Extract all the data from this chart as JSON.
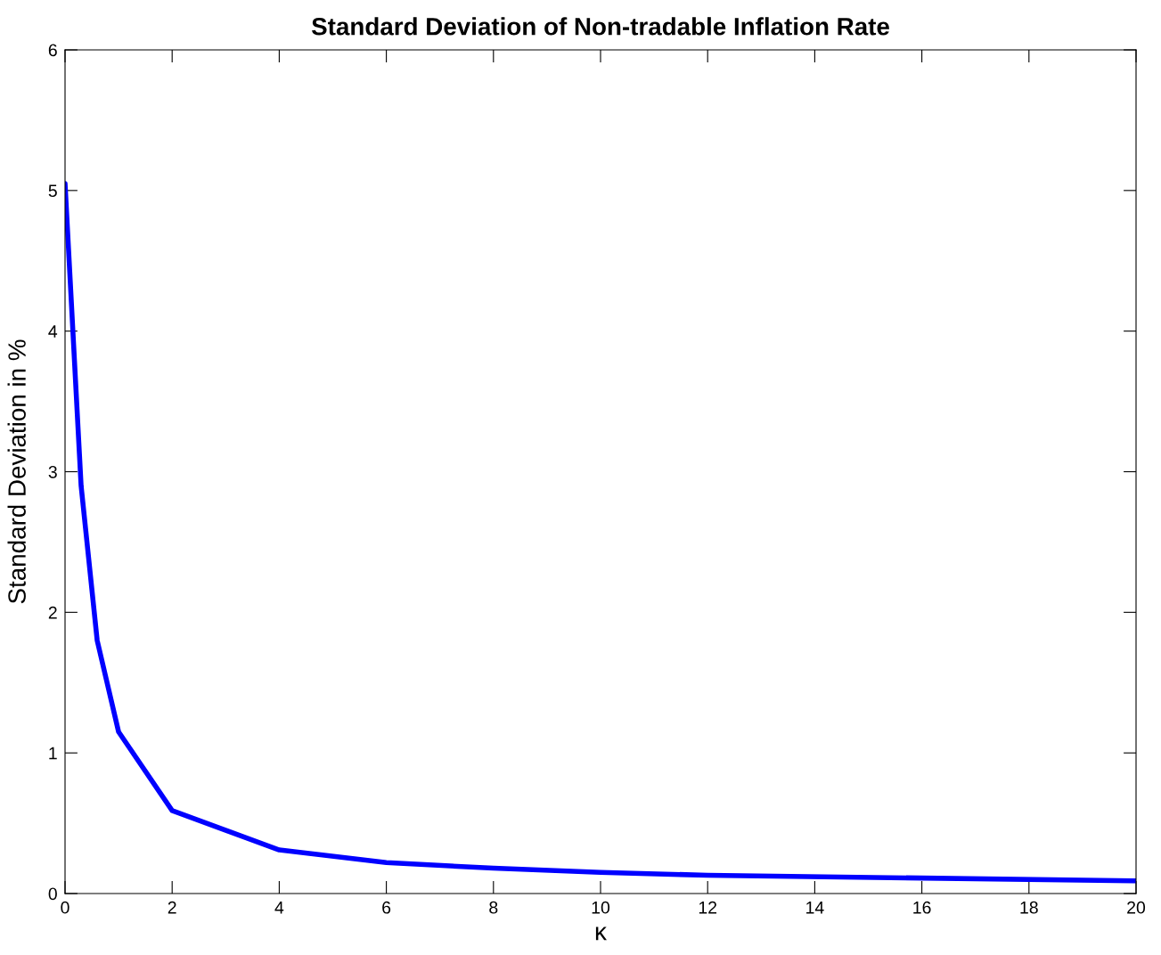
{
  "chart_data": {
    "type": "line",
    "title": "Standard Deviation of Non-tradable Inflation Rate",
    "xlabel": "κ",
    "ylabel": "Standard Deviation in %",
    "x": [
      0,
      0.3,
      0.6,
      1,
      2,
      4,
      6,
      8,
      10,
      12,
      20
    ],
    "series": [
      {
        "color": "#0000ff",
        "values": [
          5.05,
          2.9,
          1.8,
          1.15,
          0.59,
          0.31,
          0.22,
          0.18,
          0.15,
          0.13,
          0.09
        ]
      }
    ],
    "xlim": [
      0,
      20
    ],
    "xticks": [
      0,
      2,
      4,
      6,
      8,
      10,
      12,
      14,
      16,
      18,
      20
    ],
    "ylim": [
      0,
      6
    ],
    "yticks": [
      0,
      1,
      2,
      3,
      4,
      5,
      6
    ],
    "grid": false,
    "marker": "none",
    "line_style": "solid"
  }
}
